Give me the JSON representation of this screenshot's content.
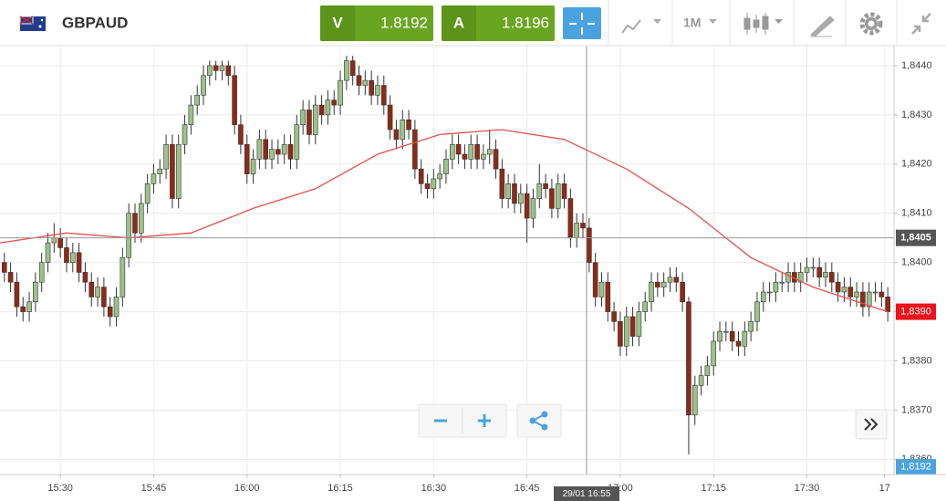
{
  "header": {
    "symbol": "GBPAUD",
    "sell_label": "V",
    "sell_price": "1.8192",
    "buy_label": "A",
    "buy_price": "1.8196",
    "timeframe": "1M"
  },
  "chart_data": {
    "type": "candlestick",
    "xlim": [
      920.3,
      1064
    ],
    "ylim": [
      1.8357,
      1.8445
    ],
    "xticks": [
      {
        "value": 930,
        "label": "15:30"
      },
      {
        "value": 945,
        "label": "15:45"
      },
      {
        "value": 960,
        "label": "16:00"
      },
      {
        "value": 975,
        "label": "16:15"
      },
      {
        "value": 990,
        "label": "16:30"
      },
      {
        "value": 1005,
        "label": "16:45"
      },
      {
        "value": 1020,
        "label": "17:00"
      },
      {
        "value": 1035,
        "label": "17:15"
      },
      {
        "value": 1050,
        "label": "17:30"
      },
      {
        "value": 1062.5,
        "label": "17"
      }
    ],
    "yticks": [
      {
        "value": 1.836,
        "label": "1,8360"
      },
      {
        "value": 1.837,
        "label": "1,8370"
      },
      {
        "value": 1.838,
        "label": "1,8380"
      },
      {
        "value": 1.839,
        "label": "1,8390"
      },
      {
        "value": 1.84,
        "label": "1,8400"
      },
      {
        "value": 1.841,
        "label": "1,8410"
      },
      {
        "value": 1.842,
        "label": "1,8420"
      },
      {
        "value": 1.843,
        "label": "1,8430"
      },
      {
        "value": 1.844,
        "label": "1,8440"
      }
    ],
    "grid": true,
    "price_line": {
      "value": 1.8405,
      "label": "1,8405"
    },
    "last_price": {
      "value": 1.839,
      "label": "1,8390"
    },
    "bid_label": "1,8192",
    "crosshair_label": "29/01 16:55",
    "series": [
      {
        "type": "candlestick",
        "up_color": "#9cc28a",
        "down_color": "#8e2a17",
        "x": [
          921,
          922,
          923,
          924,
          925,
          926,
          927,
          928,
          929,
          930,
          931,
          932,
          933,
          934,
          935,
          936,
          937,
          938,
          939,
          940,
          941,
          942,
          943,
          944,
          945,
          946,
          947,
          948,
          949,
          950,
          951,
          952,
          953,
          954,
          955,
          956,
          957,
          958,
          959,
          960,
          961,
          962,
          963,
          964,
          965,
          966,
          967,
          968,
          969,
          970,
          971,
          972,
          973,
          974,
          975,
          976,
          977,
          978,
          979,
          980,
          981,
          982,
          983,
          984,
          985,
          986,
          987,
          988,
          989,
          990,
          991,
          992,
          993,
          994,
          995,
          996,
          997,
          998,
          999,
          1000,
          1001,
          1002,
          1003,
          1004,
          1005,
          1006,
          1007,
          1008,
          1009,
          1010,
          1011,
          1012,
          1013,
          1014,
          1015,
          1016,
          1017,
          1018,
          1019,
          1020,
          1021,
          1022,
          1023,
          1024,
          1025,
          1026,
          1027,
          1028,
          1029,
          1030,
          1031,
          1032,
          1033,
          1034,
          1035,
          1036,
          1037,
          1038,
          1039,
          1040,
          1041,
          1042,
          1043,
          1044,
          1045,
          1046,
          1047,
          1048,
          1049,
          1050,
          1051,
          1052,
          1053,
          1054,
          1055,
          1056,
          1057,
          1058,
          1059,
          1060,
          1061,
          1062,
          1063
        ],
        "ohlc": [
          [
            1.84,
            1.8402,
            1.8396,
            1.8398
          ],
          [
            1.8398,
            1.84,
            1.8394,
            1.8396
          ],
          [
            1.8396,
            1.8398,
            1.8389,
            1.8391
          ],
          [
            1.8391,
            1.8393,
            1.8388,
            1.839
          ],
          [
            1.839,
            1.8394,
            1.8388,
            1.8392
          ],
          [
            1.8392,
            1.8398,
            1.839,
            1.8396
          ],
          [
            1.8396,
            1.8402,
            1.8394,
            1.84
          ],
          [
            1.84,
            1.8406,
            1.8398,
            1.8404
          ],
          [
            1.8404,
            1.8408,
            1.8402,
            1.8405
          ],
          [
            1.8405,
            1.8407,
            1.8401,
            1.8403
          ],
          [
            1.8403,
            1.8405,
            1.8398,
            1.84
          ],
          [
            1.84,
            1.8404,
            1.8398,
            1.8402
          ],
          [
            1.8402,
            1.8404,
            1.8396,
            1.8398
          ],
          [
            1.8398,
            1.84,
            1.8394,
            1.8396
          ],
          [
            1.8396,
            1.8398,
            1.8391,
            1.8393
          ],
          [
            1.8393,
            1.8397,
            1.8391,
            1.8395
          ],
          [
            1.8395,
            1.8397,
            1.8389,
            1.8391
          ],
          [
            1.8391,
            1.8393,
            1.8387,
            1.8389
          ],
          [
            1.8389,
            1.8395,
            1.8387,
            1.8393
          ],
          [
            1.8393,
            1.8403,
            1.8391,
            1.8401
          ],
          [
            1.8401,
            1.8412,
            1.8399,
            1.841
          ],
          [
            1.841,
            1.8412,
            1.8404,
            1.8406
          ],
          [
            1.8406,
            1.8414,
            1.8404,
            1.8412
          ],
          [
            1.8412,
            1.8418,
            1.841,
            1.8416
          ],
          [
            1.8416,
            1.842,
            1.8414,
            1.8418
          ],
          [
            1.8418,
            1.8421,
            1.8416,
            1.8419
          ],
          [
            1.8419,
            1.8426,
            1.8417,
            1.8424
          ],
          [
            1.8424,
            1.8426,
            1.8411,
            1.8413
          ],
          [
            1.8413,
            1.8426,
            1.8411,
            1.8424
          ],
          [
            1.8424,
            1.843,
            1.8422,
            1.8428
          ],
          [
            1.8428,
            1.8434,
            1.8426,
            1.8432
          ],
          [
            1.8432,
            1.8436,
            1.843,
            1.8434
          ],
          [
            1.8434,
            1.844,
            1.8432,
            1.8438
          ],
          [
            1.8438,
            1.8441,
            1.8436,
            1.844
          ],
          [
            1.844,
            1.8441,
            1.8437,
            1.8439
          ],
          [
            1.8439,
            1.8441,
            1.8437,
            1.844
          ],
          [
            1.844,
            1.8441,
            1.8436,
            1.8438
          ],
          [
            1.8438,
            1.844,
            1.8426,
            1.8428
          ],
          [
            1.8428,
            1.843,
            1.8422,
            1.8424
          ],
          [
            1.8424,
            1.8426,
            1.8416,
            1.8418
          ],
          [
            1.8418,
            1.8423,
            1.8416,
            1.8421
          ],
          [
            1.8421,
            1.8427,
            1.8419,
            1.8425
          ],
          [
            1.8425,
            1.8427,
            1.8419,
            1.8421
          ],
          [
            1.8421,
            1.8425,
            1.8419,
            1.8423
          ],
          [
            1.8423,
            1.8425,
            1.842,
            1.8422
          ],
          [
            1.8422,
            1.8426,
            1.842,
            1.8424
          ],
          [
            1.8424,
            1.8426,
            1.8419,
            1.8421
          ],
          [
            1.8421,
            1.843,
            1.8419,
            1.8428
          ],
          [
            1.8428,
            1.8433,
            1.8426,
            1.8431
          ],
          [
            1.8431,
            1.8433,
            1.8424,
            1.8426
          ],
          [
            1.8426,
            1.8434,
            1.8424,
            1.8432
          ],
          [
            1.8432,
            1.8434,
            1.8428,
            1.843
          ],
          [
            1.843,
            1.8435,
            1.8428,
            1.8433
          ],
          [
            1.8433,
            1.8435,
            1.843,
            1.8432
          ],
          [
            1.8432,
            1.8439,
            1.843,
            1.8437
          ],
          [
            1.8437,
            1.8442,
            1.8435,
            1.8441
          ],
          [
            1.8441,
            1.8442,
            1.8436,
            1.8438
          ],
          [
            1.8438,
            1.844,
            1.8434,
            1.8436
          ],
          [
            1.8436,
            1.8439,
            1.8434,
            1.8437
          ],
          [
            1.8437,
            1.8439,
            1.8432,
            1.8434
          ],
          [
            1.8434,
            1.8438,
            1.8432,
            1.8436
          ],
          [
            1.8436,
            1.8438,
            1.843,
            1.8432
          ],
          [
            1.8432,
            1.8434,
            1.8425,
            1.8427
          ],
          [
            1.8427,
            1.8429,
            1.8423,
            1.8425
          ],
          [
            1.8425,
            1.8431,
            1.8423,
            1.8429
          ],
          [
            1.8429,
            1.8431,
            1.8425,
            1.8427
          ],
          [
            1.8427,
            1.8429,
            1.8417,
            1.8419
          ],
          [
            1.8419,
            1.8421,
            1.8414,
            1.8416
          ],
          [
            1.8416,
            1.8418,
            1.8413,
            1.8415
          ],
          [
            1.8415,
            1.8419,
            1.8413,
            1.8417
          ],
          [
            1.8417,
            1.842,
            1.8415,
            1.8418
          ],
          [
            1.8418,
            1.8423,
            1.8416,
            1.8421
          ],
          [
            1.8421,
            1.8426,
            1.8419,
            1.8424
          ],
          [
            1.8424,
            1.8426,
            1.842,
            1.8422
          ],
          [
            1.8422,
            1.8424,
            1.8419,
            1.8421
          ],
          [
            1.8421,
            1.8426,
            1.8419,
            1.8424
          ],
          [
            1.8424,
            1.8426,
            1.8419,
            1.8421
          ],
          [
            1.8421,
            1.8424,
            1.8419,
            1.8422
          ],
          [
            1.8422,
            1.8427,
            1.842,
            1.8423
          ],
          [
            1.8423,
            1.8425,
            1.8417,
            1.8419
          ],
          [
            1.8419,
            1.8421,
            1.8411,
            1.8413
          ],
          [
            1.8413,
            1.8418,
            1.8411,
            1.8416
          ],
          [
            1.8416,
            1.8418,
            1.841,
            1.8412
          ],
          [
            1.8412,
            1.8416,
            1.841,
            1.8414
          ],
          [
            1.8414,
            1.8416,
            1.8404,
            1.8409
          ],
          [
            1.8409,
            1.8415,
            1.8407,
            1.8413
          ],
          [
            1.8413,
            1.842,
            1.8411,
            1.8416
          ],
          [
            1.8416,
            1.8418,
            1.8413,
            1.8415
          ],
          [
            1.8415,
            1.8417,
            1.8409,
            1.8411
          ],
          [
            1.8411,
            1.8418,
            1.8409,
            1.8416
          ],
          [
            1.8416,
            1.8418,
            1.8411,
            1.8413
          ],
          [
            1.8413,
            1.8415,
            1.8403,
            1.8405
          ],
          [
            1.8405,
            1.841,
            1.8403,
            1.8408
          ],
          [
            1.8408,
            1.841,
            1.8405,
            1.8407
          ],
          [
            1.8407,
            1.8409,
            1.8398,
            1.84
          ],
          [
            1.84,
            1.8402,
            1.8391,
            1.8393
          ],
          [
            1.8393,
            1.8398,
            1.8391,
            1.8396
          ],
          [
            1.8396,
            1.8398,
            1.8388,
            1.839
          ],
          [
            1.839,
            1.8392,
            1.8386,
            1.8388
          ],
          [
            1.8388,
            1.839,
            1.8381,
            1.8383
          ],
          [
            1.8383,
            1.8391,
            1.8381,
            1.8389
          ],
          [
            1.8389,
            1.8391,
            1.8383,
            1.8385
          ],
          [
            1.8385,
            1.8392,
            1.8383,
            1.839
          ],
          [
            1.839,
            1.8394,
            1.8388,
            1.8392
          ],
          [
            1.8392,
            1.8398,
            1.839,
            1.8396
          ],
          [
            1.8396,
            1.8398,
            1.8393,
            1.8395
          ],
          [
            1.8395,
            1.8398,
            1.8393,
            1.8396
          ],
          [
            1.8396,
            1.8399,
            1.8394,
            1.8397
          ],
          [
            1.8397,
            1.8399,
            1.8394,
            1.8396
          ],
          [
            1.8396,
            1.8398,
            1.839,
            1.8392
          ],
          [
            1.8392,
            1.8393,
            1.8361,
            1.8369
          ],
          [
            1.8369,
            1.8377,
            1.8367,
            1.8375
          ],
          [
            1.8375,
            1.8379,
            1.8373,
            1.8377
          ],
          [
            1.8377,
            1.8381,
            1.8375,
            1.8379
          ],
          [
            1.8379,
            1.8386,
            1.8377,
            1.8384
          ],
          [
            1.8384,
            1.8388,
            1.8382,
            1.8386
          ],
          [
            1.8386,
            1.8388,
            1.8384,
            1.8386
          ],
          [
            1.8386,
            1.8388,
            1.8382,
            1.8384
          ],
          [
            1.8384,
            1.8386,
            1.8381,
            1.8383
          ],
          [
            1.8383,
            1.8388,
            1.8381,
            1.8386
          ],
          [
            1.8386,
            1.839,
            1.8384,
            1.8388
          ],
          [
            1.8388,
            1.8394,
            1.8386,
            1.8392
          ],
          [
            1.8392,
            1.8396,
            1.839,
            1.8394
          ],
          [
            1.8394,
            1.8396,
            1.8392,
            1.8394
          ],
          [
            1.8394,
            1.8398,
            1.8392,
            1.8396
          ],
          [
            1.8396,
            1.8398,
            1.8394,
            1.8396
          ],
          [
            1.8396,
            1.84,
            1.8394,
            1.8398
          ],
          [
            1.8398,
            1.84,
            1.8394,
            1.8396
          ],
          [
            1.8396,
            1.84,
            1.8394,
            1.8398
          ],
          [
            1.8398,
            1.8401,
            1.8396,
            1.8399
          ],
          [
            1.8399,
            1.8401,
            1.8397,
            1.8399
          ],
          [
            1.8399,
            1.8401,
            1.8395,
            1.8397
          ],
          [
            1.8397,
            1.84,
            1.8395,
            1.8398
          ],
          [
            1.8398,
            1.84,
            1.8394,
            1.8396
          ],
          [
            1.8396,
            1.8398,
            1.8392,
            1.8394
          ],
          [
            1.8394,
            1.8397,
            1.8392,
            1.8395
          ],
          [
            1.8395,
            1.8397,
            1.8391,
            1.8393
          ],
          [
            1.8393,
            1.8396,
            1.8391,
            1.8394
          ],
          [
            1.8394,
            1.8396,
            1.8389,
            1.8391
          ],
          [
            1.8391,
            1.8396,
            1.8389,
            1.8394
          ],
          [
            1.8394,
            1.8396,
            1.8392,
            1.8394
          ],
          [
            1.8394,
            1.8396,
            1.8391,
            1.8393
          ],
          [
            1.8393,
            1.8395,
            1.8388,
            1.839
          ]
        ]
      },
      {
        "type": "line",
        "color": "#e8504a",
        "x": [
          920.3,
          931,
          941,
          951,
          961,
          971,
          981,
          991,
          1001,
          1011,
          1021,
          1031,
          1041,
          1051,
          1063
        ],
        "values": [
          1.8404,
          1.8406,
          1.8405,
          1.8406,
          1.8411,
          1.8415,
          1.8422,
          1.8426,
          1.8427,
          1.8425,
          1.8419,
          1.8411,
          1.8401,
          1.8395,
          1.839
        ]
      }
    ]
  }
}
